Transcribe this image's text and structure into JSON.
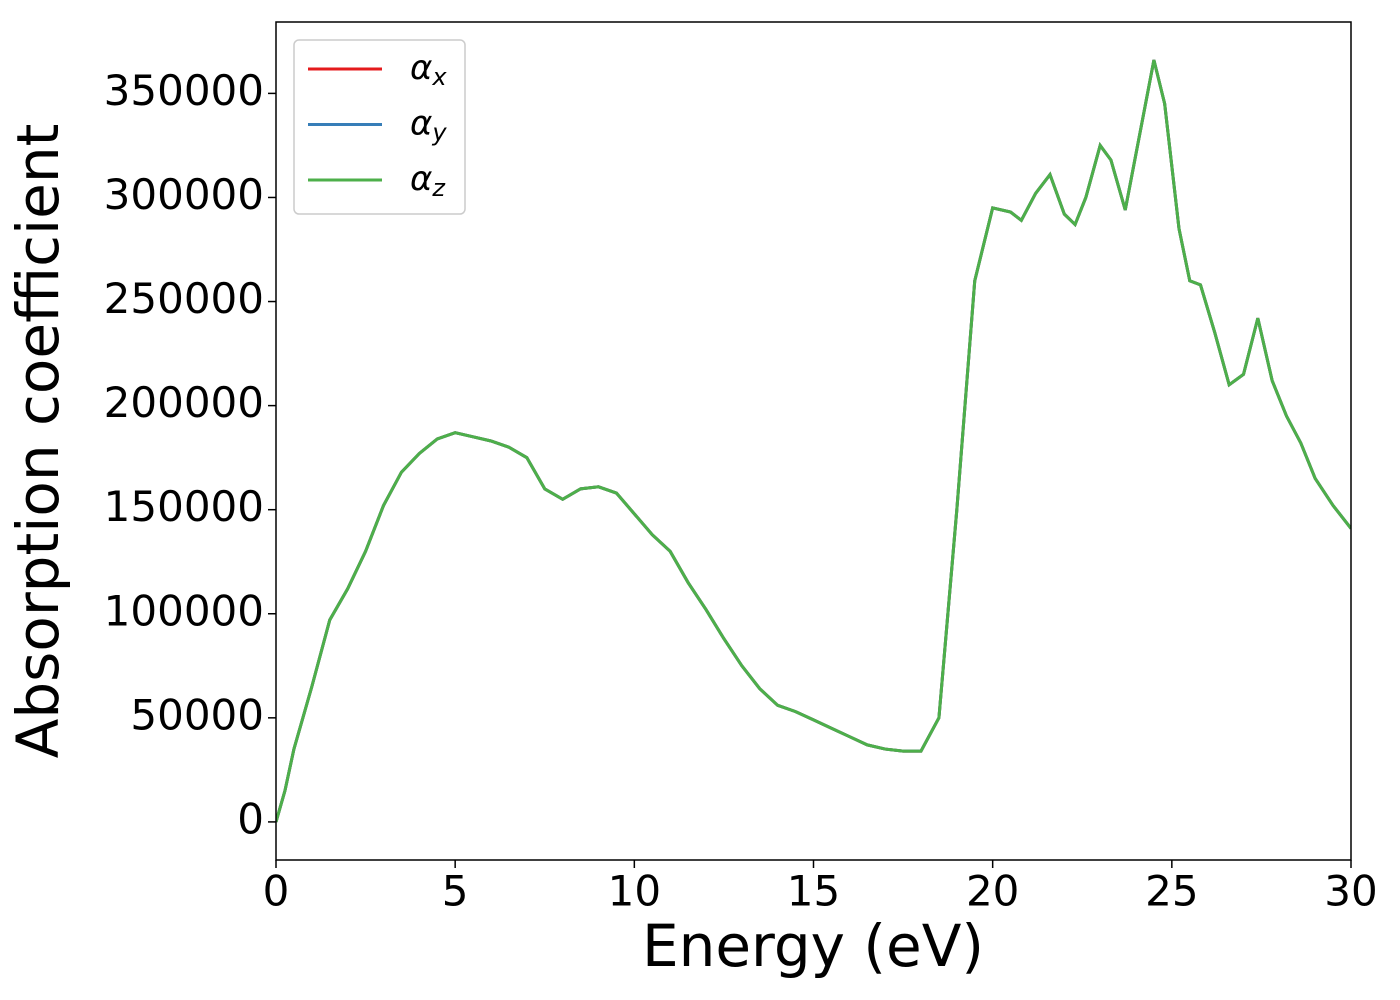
{
  "chart_data": {
    "type": "line",
    "xlabel": "Energy (eV)",
    "ylabel": "Absorption coefficient",
    "x": [
      0,
      0.25,
      0.5,
      1,
      1.5,
      2,
      2.5,
      3,
      3.5,
      4,
      4.5,
      5,
      5.5,
      6,
      6.5,
      7,
      7.5,
      8,
      8.5,
      9,
      9.5,
      10,
      10.5,
      11,
      11.5,
      12,
      12.5,
      13,
      13.5,
      14,
      14.5,
      15,
      15.5,
      16,
      16.5,
      17,
      17.5,
      18,
      18.5,
      19,
      19.5,
      20,
      20.5,
      20.8,
      21.2,
      21.6,
      22,
      22.3,
      22.6,
      23,
      23.3,
      23.7,
      24.1,
      24.5,
      24.8,
      25.2,
      25.5,
      25.8,
      26.2,
      26.6,
      27,
      27.4,
      27.8,
      28.2,
      28.6,
      29,
      29.5,
      30
    ],
    "series": [
      {
        "name": "αx",
        "color": "#e41a1c",
        "values": [
          0,
          15000,
          35000,
          65000,
          97000,
          112000,
          130000,
          152000,
          168000,
          177000,
          184000,
          187000,
          185000,
          183000,
          180000,
          175000,
          160000,
          155000,
          160000,
          161000,
          158000,
          148000,
          138000,
          130000,
          115000,
          102000,
          88000,
          75000,
          64000,
          56000,
          53000,
          49000,
          45000,
          41000,
          37000,
          35000,
          34000,
          34000,
          50000,
          150000,
          260000,
          295000,
          293000,
          289000,
          302000,
          311000,
          292000,
          287000,
          300000,
          325000,
          318000,
          294000,
          330000,
          366000,
          345000,
          285000,
          260000,
          258000,
          235000,
          210000,
          215000,
          242000,
          212000,
          195000,
          182000,
          165000,
          152000,
          141000
        ]
      },
      {
        "name": "αy",
        "color": "#377eb8",
        "values": [
          0,
          15000,
          35000,
          65000,
          97000,
          112000,
          130000,
          152000,
          168000,
          177000,
          184000,
          187000,
          185000,
          183000,
          180000,
          175000,
          160000,
          155000,
          160000,
          161000,
          158000,
          148000,
          138000,
          130000,
          115000,
          102000,
          88000,
          75000,
          64000,
          56000,
          53000,
          49000,
          45000,
          41000,
          37000,
          35000,
          34000,
          34000,
          50000,
          150000,
          260000,
          295000,
          293000,
          289000,
          302000,
          311000,
          292000,
          287000,
          300000,
          325000,
          318000,
          294000,
          330000,
          366000,
          345000,
          285000,
          260000,
          258000,
          235000,
          210000,
          215000,
          242000,
          212000,
          195000,
          182000,
          165000,
          152000,
          141000
        ]
      },
      {
        "name": "αz",
        "color": "#4daf4a",
        "values": [
          0,
          15000,
          35000,
          65000,
          97000,
          112000,
          130000,
          152000,
          168000,
          177000,
          184000,
          187000,
          185000,
          183000,
          180000,
          175000,
          160000,
          155000,
          160000,
          161000,
          158000,
          148000,
          138000,
          130000,
          115000,
          102000,
          88000,
          75000,
          64000,
          56000,
          53000,
          49000,
          45000,
          41000,
          37000,
          35000,
          34000,
          34000,
          50000,
          150000,
          260000,
          295000,
          293000,
          289000,
          302000,
          311000,
          292000,
          287000,
          300000,
          325000,
          318000,
          294000,
          330000,
          366000,
          345000,
          285000,
          260000,
          258000,
          235000,
          210000,
          215000,
          242000,
          212000,
          195000,
          182000,
          165000,
          152000,
          141000
        ]
      }
    ],
    "xlim": [
      0,
      30
    ],
    "xticks": [
      0,
      5,
      10,
      15,
      20,
      25,
      30
    ],
    "ylim": [
      -18300,
      384300
    ],
    "yticks": [
      0,
      50000,
      100000,
      150000,
      200000,
      250000,
      300000,
      350000
    ],
    "legend": "upper left",
    "grid": false
  }
}
